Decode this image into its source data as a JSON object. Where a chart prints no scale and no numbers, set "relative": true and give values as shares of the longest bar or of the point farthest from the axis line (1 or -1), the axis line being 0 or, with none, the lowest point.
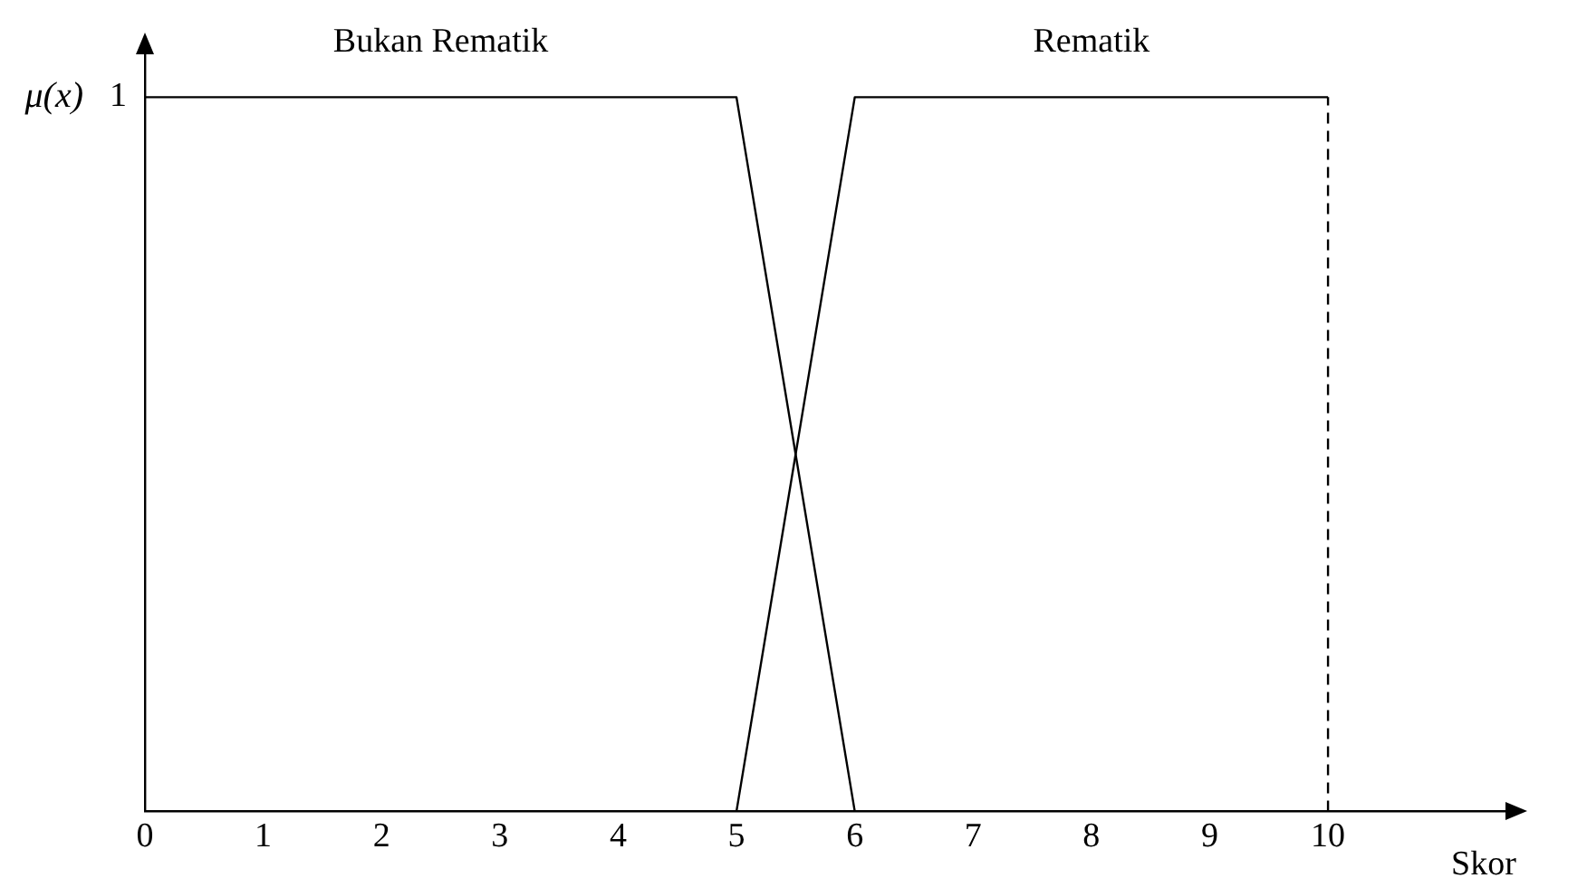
{
  "chart_data": {
    "type": "line",
    "relative": true,
    "xlabel": "Skor",
    "ylabel": "μ(x)",
    "xlim": [
      0,
      11.5
    ],
    "xticks": [
      0,
      1,
      2,
      3,
      4,
      5,
      6,
      7,
      8,
      9,
      10
    ],
    "grid": false,
    "legend": false,
    "marker": "none",
    "series": [
      {
        "name": "Bukan Rematik",
        "color": "#000000",
        "x": [
          0,
          5,
          6
        ],
        "values": [
          1,
          1,
          0
        ]
      },
      {
        "name": "Rematik",
        "color": "#000000",
        "x": [
          5,
          6,
          10
        ],
        "values": [
          0,
          1,
          1
        ]
      }
    ],
    "ref_lines": [
      {
        "axis": "x",
        "value": 10,
        "color": "#000000",
        "line_style": "dashed"
      }
    ],
    "annotations": [
      {
        "text": "1",
        "x": 0,
        "y": 1
      }
    ]
  }
}
